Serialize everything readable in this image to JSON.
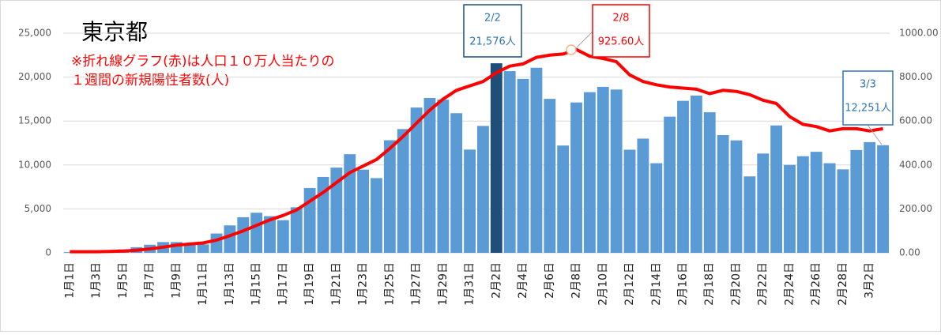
{
  "chart_data": {
    "type": "bar_line",
    "title": "東京都",
    "subtitle": [
      "※折れ線グラフ(赤)は人口１０万人当たりの",
      "１週間の新規陽性者数(人)"
    ],
    "categories": [
      "1月1日",
      null,
      "1月3日",
      null,
      "1月5日",
      null,
      "1月7日",
      null,
      "1月9日",
      null,
      "1月11日",
      null,
      "1月13日",
      null,
      "1月15日",
      null,
      "1月17日",
      null,
      "1月19日",
      null,
      "1月21日",
      null,
      "1月23日",
      null,
      "1月25日",
      null,
      "1月27日",
      null,
      "1月29日",
      null,
      "1月31日",
      null,
      "2月2日",
      null,
      "2月4日",
      null,
      "2月6日",
      null,
      "2月8日",
      null,
      "2月10日",
      null,
      "2月12日",
      null,
      "2月14日",
      null,
      "2月16日",
      null,
      "2月18日",
      null,
      "2月20日",
      null,
      "2月22日",
      null,
      "2月24日",
      null,
      "2月26日",
      null,
      "2月28日",
      null,
      "3月2日",
      null
    ],
    "series": [
      {
        "type": "bar",
        "axis": "y",
        "color": "#5b9bd5",
        "highlight_color": "#1f4e79",
        "values": [
          79,
          84,
          103,
          151,
          390,
          641,
          922,
          1224,
          1223,
          871,
          962,
          2198,
          3124,
          4051,
          4561,
          4172,
          3719,
          5185,
          7377,
          8638,
          9699,
          11227,
          9468,
          8503,
          12813,
          14086,
          16538,
          17631,
          17433,
          15895,
          11751,
          14445,
          21576,
          20679,
          19798,
          21068,
          17526,
          12214,
          17113,
          18287,
          18891,
          18585,
          11739,
          13000,
          10200,
          15500,
          17300,
          17900,
          16000,
          13400,
          12800,
          8700,
          11300,
          14500,
          10000,
          11000,
          11500,
          10200,
          9500,
          11700,
          12600,
          12251
        ]
      },
      {
        "type": "line",
        "axis": "y2",
        "color": "#ff0000",
        "values": [
          5,
          5,
          5,
          6,
          8,
          12,
          18,
          26,
          35,
          40,
          45,
          58,
          78,
          100,
          125,
          150,
          170,
          195,
          235,
          275,
          320,
          365,
          395,
          425,
          475,
          530,
          590,
          650,
          700,
          740,
          760,
          780,
          820,
          850,
          860,
          890,
          900,
          905,
          925.6,
          895,
          885,
          870,
          810,
          780,
          765,
          755,
          750,
          745,
          725,
          740,
          735,
          720,
          695,
          680,
          620,
          585,
          575,
          555,
          565,
          565,
          555,
          565
        ]
      }
    ],
    "ylim": [
      0,
      25000
    ],
    "yticks": [
      0,
      {
        "value": 5000,
        "label": "5,000"
      },
      {
        "value": 10000,
        "label": "10,000"
      },
      {
        "value": 15000,
        "label": "15,000"
      },
      {
        "value": 20000,
        "label": "20,000"
      },
      {
        "value": 25000,
        "label": "25,000"
      }
    ],
    "y2lim": [
      0,
      1000
    ],
    "y2ticks": [
      {
        "value": 0,
        "label": "0.00"
      },
      {
        "value": 200,
        "label": "200.00"
      },
      {
        "value": 400,
        "label": "400.00"
      },
      {
        "value": 600,
        "label": "600.00"
      },
      {
        "value": 800,
        "label": "800.00"
      },
      {
        "value": 1000,
        "label": "1000.00"
      }
    ],
    "grid": true,
    "annotations": [
      {
        "date": "2/2",
        "text": "21,576人"
      },
      {
        "date": "2/8",
        "text": "925.60人"
      },
      {
        "date": "3/3",
        "text": "12,251人"
      }
    ]
  }
}
